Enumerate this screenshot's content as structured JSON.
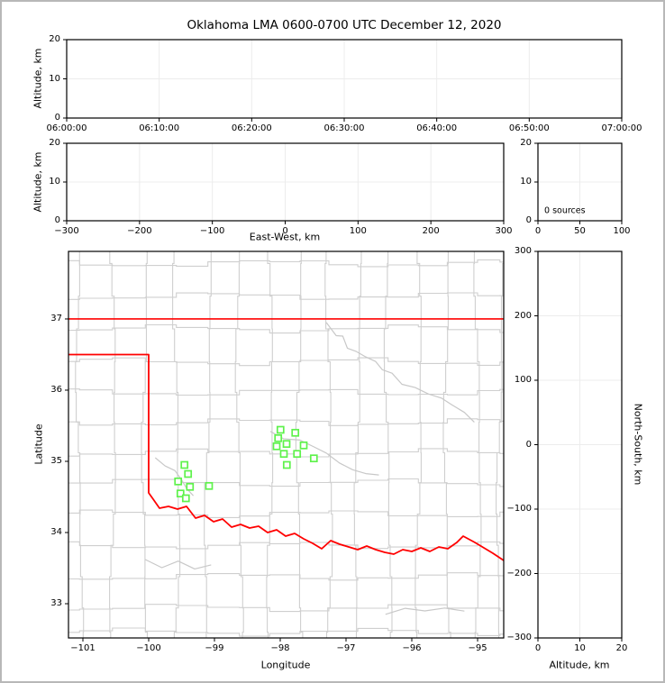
{
  "title": "Oklahoma LMA 0600-0700 UTC December 12, 2020",
  "colors": {
    "state_boundary": "#ff0000",
    "county_lines": "#cfcfcf",
    "river_lines": "#c8c8c8",
    "station_marker": "#5ef24b",
    "gridline": "#ececec",
    "frame": "#000000",
    "figure_border": "#b8b8b8"
  },
  "panels": {
    "time_height": {
      "ylabel": "Altitude, km",
      "yticks": [
        "20",
        "10",
        "0"
      ],
      "xticks": [
        "06:00:00",
        "06:10:00",
        "06:20:00",
        "06:30:00",
        "06:40:00",
        "06:50:00",
        "07:00:00"
      ]
    },
    "ew_height": {
      "ylabel": "Altitude, km",
      "xlabel": "East-West, km",
      "yticks": [
        "20",
        "10",
        "0"
      ],
      "xticks": [
        "−300",
        "−200",
        "−100",
        "0",
        "100",
        "200",
        "300"
      ]
    },
    "histogram": {
      "annotation": "0 sources",
      "yticks": [
        "20",
        "10",
        "0"
      ],
      "xticks": [
        "0",
        "50",
        "100"
      ]
    },
    "map": {
      "xlabel": "Longitude",
      "ylabel": "Latitude",
      "yticks": [
        "37",
        "36",
        "35",
        "34",
        "33"
      ],
      "xticks": [
        "−101",
        "−100",
        "−99",
        "−98",
        "−97",
        "−96",
        "−95"
      ]
    },
    "ns_height": {
      "xlabel": "Altitude, km",
      "ylabel": "North-South, km",
      "yticks": [
        "300",
        "200",
        "100",
        "0",
        "−100",
        "−200",
        "−300"
      ],
      "xticks": [
        "0",
        "10",
        "20"
      ]
    }
  },
  "map_data": {
    "lon_range": [
      -101.219,
      -94.603
    ],
    "lat_range": [
      32.519,
      37.949
    ],
    "state_boundary": {
      "north_border": [
        [
          -101.219,
          37.0
        ],
        [
          -94.603,
          37.0
        ]
      ],
      "west_and_south_border": [
        [
          -101.219,
          36.5
        ],
        [
          -100.0,
          36.5
        ],
        [
          -100.0,
          34.557
        ],
        [
          -99.932,
          34.468
        ],
        [
          -99.836,
          34.342
        ],
        [
          -99.699,
          34.367
        ],
        [
          -99.562,
          34.329
        ],
        [
          -99.425,
          34.367
        ],
        [
          -99.288,
          34.203
        ],
        [
          -99.151,
          34.241
        ],
        [
          -99.014,
          34.152
        ],
        [
          -98.877,
          34.19
        ],
        [
          -98.74,
          34.076
        ],
        [
          -98.603,
          34.114
        ],
        [
          -98.466,
          34.063
        ],
        [
          -98.329,
          34.089
        ],
        [
          -98.192,
          34.0
        ],
        [
          -98.055,
          34.038
        ],
        [
          -97.918,
          33.949
        ],
        [
          -97.781,
          33.987
        ],
        [
          -97.644,
          33.911
        ],
        [
          -97.507,
          33.848
        ],
        [
          -97.37,
          33.772
        ],
        [
          -97.233,
          33.886
        ],
        [
          -97.096,
          33.835
        ],
        [
          -96.959,
          33.797
        ],
        [
          -96.822,
          33.759
        ],
        [
          -96.685,
          33.81
        ],
        [
          -96.548,
          33.759
        ],
        [
          -96.411,
          33.721
        ],
        [
          -96.274,
          33.696
        ],
        [
          -96.137,
          33.759
        ],
        [
          -96.0,
          33.734
        ],
        [
          -95.863,
          33.785
        ],
        [
          -95.726,
          33.734
        ],
        [
          -95.589,
          33.797
        ],
        [
          -95.452,
          33.772
        ],
        [
          -95.315,
          33.861
        ],
        [
          -95.219,
          33.949
        ],
        [
          -95.041,
          33.861
        ],
        [
          -94.904,
          33.785
        ],
        [
          -94.767,
          33.709
        ],
        [
          -94.603,
          33.608
        ]
      ]
    },
    "rivers": [
      [
        [
          -97.3,
          36.95
        ],
        [
          -97.15,
          36.78
        ],
        [
          -97.05,
          36.74
        ],
        [
          -96.98,
          36.6
        ],
        [
          -96.85,
          36.55
        ],
        [
          -96.7,
          36.45
        ],
        [
          -96.55,
          36.42
        ],
        [
          -96.45,
          36.28
        ],
        [
          -96.3,
          36.23
        ],
        [
          -96.15,
          36.1
        ],
        [
          -95.95,
          36.02
        ],
        [
          -95.75,
          35.95
        ],
        [
          -95.55,
          35.9
        ],
        [
          -95.4,
          35.78
        ],
        [
          -95.2,
          35.7
        ],
        [
          -95.05,
          35.55
        ]
      ],
      [
        [
          -98.15,
          35.42
        ],
        [
          -97.95,
          35.33
        ],
        [
          -97.7,
          35.28
        ],
        [
          -97.5,
          35.22
        ],
        [
          -97.3,
          35.12
        ],
        [
          -97.1,
          34.96
        ],
        [
          -96.9,
          34.9
        ],
        [
          -96.7,
          34.82
        ],
        [
          -96.5,
          34.8
        ]
      ],
      [
        [
          -99.9,
          35.05
        ],
        [
          -99.75,
          34.95
        ],
        [
          -99.6,
          34.85
        ],
        [
          -99.5,
          34.75
        ],
        [
          -99.42,
          34.62
        ],
        [
          -99.32,
          34.5
        ]
      ],
      [
        [
          -100.05,
          33.62
        ],
        [
          -99.8,
          33.52
        ],
        [
          -99.55,
          33.58
        ],
        [
          -99.3,
          33.5
        ],
        [
          -99.05,
          33.55
        ]
      ],
      [
        [
          -96.4,
          32.85
        ],
        [
          -96.1,
          32.95
        ],
        [
          -95.8,
          32.88
        ],
        [
          -95.5,
          32.95
        ],
        [
          -95.2,
          32.9
        ]
      ]
    ],
    "county_grid": {
      "v_lons": [
        -101.05,
        -100.55,
        -100.05,
        -99.58,
        -99.1,
        -98.62,
        -98.16,
        -97.7,
        -97.26,
        -96.82,
        -96.36,
        -95.9,
        -95.46,
        -95.0,
        -94.66
      ],
      "h_lats": [
        37.78,
        37.32,
        36.86,
        36.4,
        35.97,
        35.55,
        35.12,
        34.7,
        34.26,
        33.82,
        33.38,
        32.94,
        32.6
      ]
    },
    "stations": [
      [
        -99.456,
        34.949
      ],
      [
        -99.401,
        34.823
      ],
      [
        -99.552,
        34.718
      ],
      [
        -99.373,
        34.642
      ],
      [
        -99.082,
        34.654
      ],
      [
        -99.516,
        34.548
      ],
      [
        -99.434,
        34.481
      ],
      [
        -97.996,
        35.443
      ],
      [
        -97.771,
        35.401
      ],
      [
        -98.032,
        35.325
      ],
      [
        -97.904,
        35.244
      ],
      [
        -98.055,
        35.211
      ],
      [
        -97.644,
        35.224
      ],
      [
        -97.744,
        35.105
      ],
      [
        -97.945,
        35.105
      ],
      [
        -97.489,
        35.042
      ],
      [
        -97.9,
        34.949
      ]
    ]
  },
  "chart_data": [
    {
      "id": "time_height",
      "type": "scatter",
      "xlabel": "",
      "ylabel": "Altitude, km",
      "xticks": [
        "06:00:00",
        "06:10:00",
        "06:20:00",
        "06:30:00",
        "06:40:00",
        "06:50:00",
        "07:00:00"
      ],
      "ylim": [
        0,
        20
      ],
      "yticks": [
        0,
        10,
        20
      ],
      "grid": true,
      "points": []
    },
    {
      "id": "ew_height",
      "type": "scatter",
      "xlabel": "East-West, km",
      "ylabel": "Altitude, km",
      "xlim": [
        -300,
        300
      ],
      "xticks": [
        -300,
        -200,
        -100,
        0,
        100,
        200,
        300
      ],
      "ylim": [
        0,
        20
      ],
      "yticks": [
        0,
        10,
        20
      ],
      "grid": true,
      "points": []
    },
    {
      "id": "altitude_histogram",
      "type": "line",
      "xlim": [
        0,
        100
      ],
      "xticks": [
        0,
        50,
        100
      ],
      "ylim": [
        0,
        20
      ],
      "yticks": [
        0,
        10,
        20
      ],
      "annotation": "0 sources",
      "grid": true,
      "points": []
    },
    {
      "id": "plan_view_map",
      "type": "scatter",
      "xlabel": "Longitude",
      "ylabel": "Latitude",
      "xlim": [
        -101.219,
        -94.603
      ],
      "xticks": [
        -101,
        -100,
        -99,
        -98,
        -97,
        -96,
        -95
      ],
      "ylim": [
        32.519,
        37.949
      ],
      "yticks": [
        33,
        34,
        35,
        36,
        37
      ],
      "grid": false,
      "series": [
        {
          "name": "lma_stations",
          "marker": "open-square",
          "color": "#5ef24b",
          "points": [
            [
              -99.456,
              34.949
            ],
            [
              -99.401,
              34.823
            ],
            [
              -99.552,
              34.718
            ],
            [
              -99.373,
              34.642
            ],
            [
              -99.082,
              34.654
            ],
            [
              -99.516,
              34.548
            ],
            [
              -99.434,
              34.481
            ],
            [
              -97.996,
              35.443
            ],
            [
              -97.771,
              35.401
            ],
            [
              -98.032,
              35.325
            ],
            [
              -97.904,
              35.244
            ],
            [
              -98.055,
              35.211
            ],
            [
              -97.644,
              35.224
            ],
            [
              -97.744,
              35.105
            ],
            [
              -97.945,
              35.105
            ],
            [
              -97.489,
              35.042
            ],
            [
              -97.9,
              34.949
            ]
          ]
        }
      ]
    },
    {
      "id": "ns_height",
      "type": "scatter",
      "xlabel": "Altitude, km",
      "ylabel": "North-South, km",
      "xlim": [
        0,
        20
      ],
      "xticks": [
        0,
        10,
        20
      ],
      "ylim": [
        -300,
        300
      ],
      "yticks": [
        -300,
        -200,
        -100,
        0,
        100,
        200,
        300
      ],
      "grid": true,
      "points": []
    }
  ]
}
